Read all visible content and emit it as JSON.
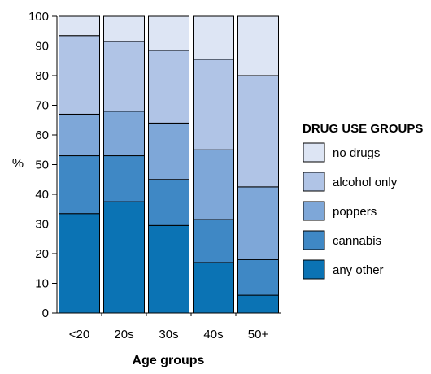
{
  "chart_data": {
    "type": "bar",
    "stacked": true,
    "categories": [
      "<20",
      "20s",
      "30s",
      "40s",
      "50+"
    ],
    "series": [
      {
        "name": "any other",
        "color": "#0b73b4",
        "values": [
          33.5,
          37.5,
          29.5,
          17,
          6
        ]
      },
      {
        "name": "cannabis",
        "color": "#3f88c5",
        "values": [
          19.5,
          15.5,
          15.5,
          14.5,
          12
        ]
      },
      {
        "name": "poppers",
        "color": "#7ea7d8",
        "values": [
          14,
          15,
          19,
          23.5,
          24.5
        ]
      },
      {
        "name": "alcohol only",
        "color": "#b0c4e6",
        "values": [
          26.5,
          23.5,
          24.5,
          30.5,
          37.5
        ]
      },
      {
        "name": "no drugs",
        "color": "#dde5f4",
        "values": [
          6.5,
          8.5,
          11.5,
          14.5,
          20
        ]
      }
    ],
    "xlabel": "Age groups",
    "ylabel": "%",
    "ylim": [
      0,
      100
    ],
    "yticks": [
      0,
      10,
      20,
      30,
      40,
      50,
      60,
      70,
      80,
      90,
      100
    ],
    "legend_title": "DRUG USE GROUPS",
    "legend_order": [
      "no drugs",
      "alcohol only",
      "poppers",
      "cannabis",
      "any other"
    ],
    "legend_position": "right",
    "grid": false
  }
}
